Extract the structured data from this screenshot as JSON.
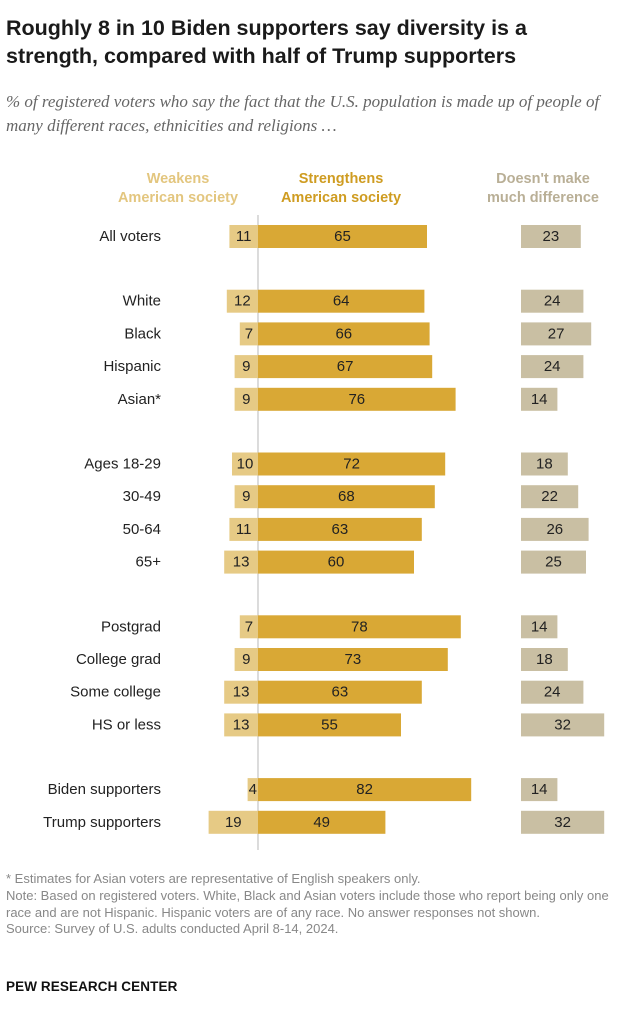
{
  "title": "Roughly 8 in 10 Biden supporters say diversity is a strength, compared with half of Trump supporters",
  "subtitle": "% of registered voters who say the fact that the U.S. population is made up of people of many different races, ethnicities and religions …",
  "column_headers": {
    "weakens": [
      "Weakens",
      "American society"
    ],
    "strengthens": [
      "Strengthens",
      "American society"
    ],
    "no_difference": [
      "Doesn't make",
      "much difference"
    ]
  },
  "colors": {
    "weakens": "#E6CA85",
    "strengthens": "#D9A835",
    "no_difference": "#C9BFA3",
    "weakens_text": "#E3C67F",
    "strengthens_text": "#CF9C21",
    "no_difference_text": "#B9AF96",
    "axis": "#C8C8C8"
  },
  "chart_data": {
    "type": "bar",
    "orientation": "horizontal",
    "categories": [
      "All voters",
      "White",
      "Black",
      "Hispanic",
      "Asian*",
      "Ages 18-29",
      "30-49",
      "50-64",
      "65+",
      "Postgrad",
      "College grad",
      "Some college",
      "HS or less",
      "Biden supporters",
      "Trump supporters"
    ],
    "groups": [
      [
        0
      ],
      [
        1,
        2,
        3,
        4
      ],
      [
        5,
        6,
        7,
        8
      ],
      [
        9,
        10,
        11,
        12
      ],
      [
        13,
        14
      ]
    ],
    "series": [
      {
        "name": "Weakens American society",
        "values": [
          11,
          12,
          7,
          9,
          9,
          10,
          9,
          11,
          13,
          7,
          9,
          13,
          13,
          4,
          19
        ]
      },
      {
        "name": "Strengthens American society",
        "values": [
          65,
          64,
          66,
          67,
          76,
          72,
          68,
          63,
          60,
          78,
          73,
          63,
          55,
          82,
          49
        ]
      },
      {
        "name": "Doesn't make much difference",
        "values": [
          23,
          24,
          27,
          24,
          14,
          18,
          22,
          26,
          25,
          14,
          18,
          24,
          32,
          14,
          32
        ]
      }
    ]
  },
  "footnotes": [
    "* Estimates for Asian voters are representative of English speakers only.",
    "Note: Based on registered voters. White, Black and Asian voters include those who report being only one race and are not Hispanic. Hispanic voters are of any race. No answer responses not shown.",
    "Source: Survey of U.S. adults conducted April 8-14, 2024."
  ],
  "brand": "PEW RESEARCH CENTER"
}
